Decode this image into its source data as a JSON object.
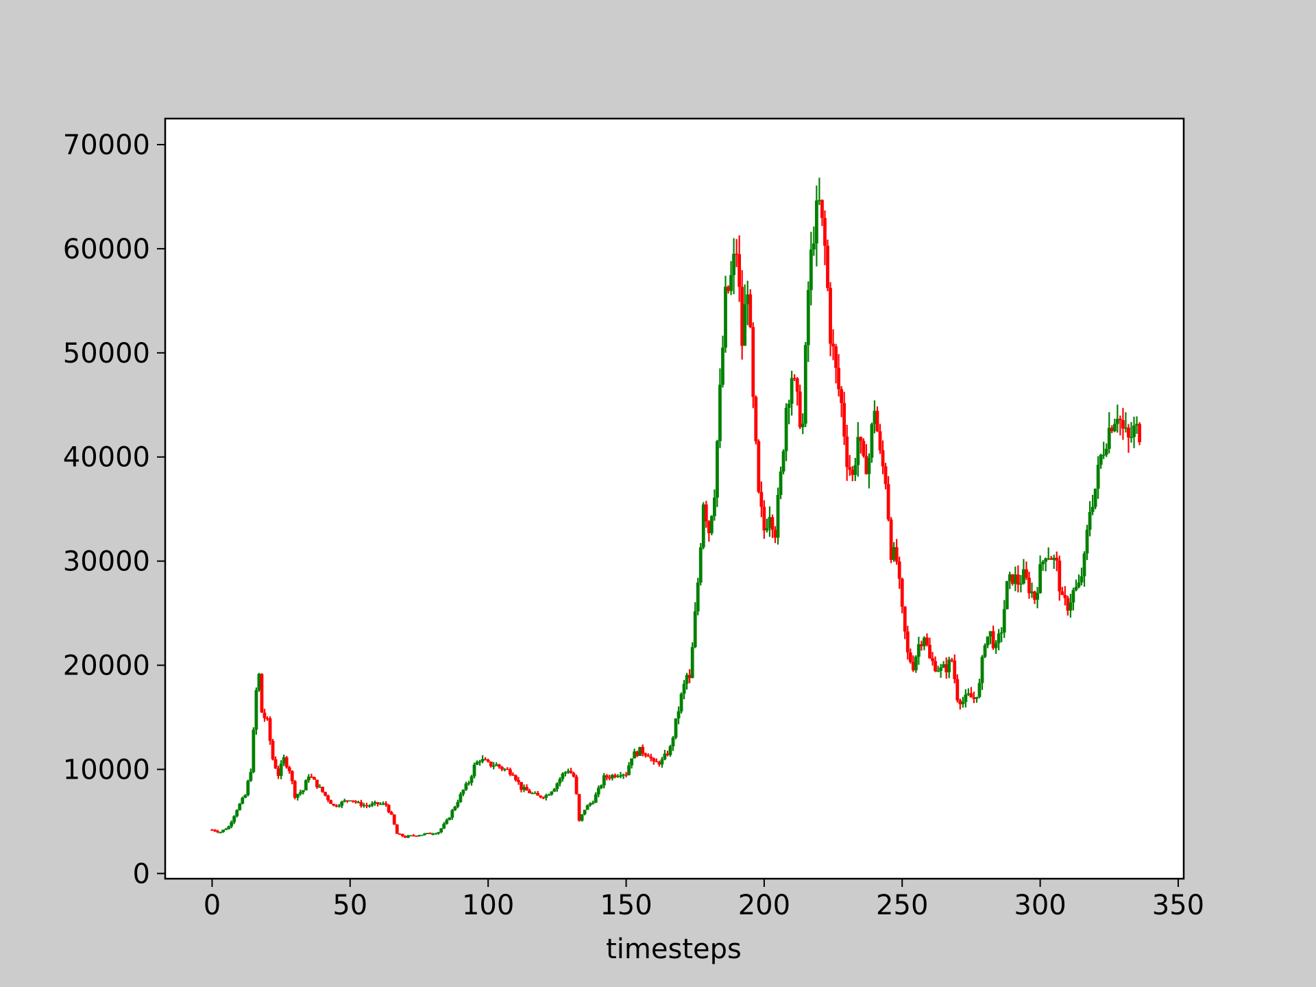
{
  "chart_data": {
    "type": "candlestick",
    "xlabel": "timesteps",
    "ylabel": "",
    "xlim": [
      -17,
      352
    ],
    "ylim": [
      -500,
      72500
    ],
    "xticks": [
      0,
      50,
      100,
      150,
      200,
      250,
      300,
      350
    ],
    "yticks": [
      0,
      10000,
      20000,
      30000,
      40000,
      50000,
      60000,
      70000
    ],
    "colors": {
      "up": "#008000",
      "down": "#ff0000",
      "background": "#cccccc",
      "plot_background": "#ffffff"
    },
    "grid": false,
    "anchor_points": [
      [
        0,
        4200
      ],
      [
        3,
        4000
      ],
      [
        6,
        4500
      ],
      [
        9,
        6200
      ],
      [
        12,
        7500
      ],
      [
        14,
        10000
      ],
      [
        15,
        13500
      ],
      [
        16,
        17500
      ],
      [
        17,
        19000
      ],
      [
        18,
        15500
      ],
      [
        20,
        14500
      ],
      [
        22,
        11000
      ],
      [
        24,
        9500
      ],
      [
        26,
        11000
      ],
      [
        28,
        10000
      ],
      [
        30,
        7500
      ],
      [
        33,
        8000
      ],
      [
        35,
        9500
      ],
      [
        38,
        8500
      ],
      [
        41,
        7500
      ],
      [
        44,
        6500
      ],
      [
        47,
        6800
      ],
      [
        50,
        7200
      ],
      [
        53,
        6700
      ],
      [
        56,
        6500
      ],
      [
        60,
        6700
      ],
      [
        63,
        6600
      ],
      [
        65,
        5500
      ],
      [
        67,
        3800
      ],
      [
        70,
        3500
      ],
      [
        74,
        3700
      ],
      [
        78,
        3800
      ],
      [
        82,
        4000
      ],
      [
        85,
        5000
      ],
      [
        88,
        6500
      ],
      [
        91,
        8000
      ],
      [
        93,
        8800
      ],
      [
        95,
        10300
      ],
      [
        97,
        11000
      ],
      [
        100,
        10500
      ],
      [
        103,
        10400
      ],
      [
        106,
        10000
      ],
      [
        109,
        9700
      ],
      [
        112,
        8200
      ],
      [
        115,
        7800
      ],
      [
        118,
        7400
      ],
      [
        121,
        7500
      ],
      [
        124,
        8300
      ],
      [
        127,
        9500
      ],
      [
        129,
        10000
      ],
      [
        131,
        9300
      ],
      [
        132,
        7500
      ],
      [
        133,
        5000
      ],
      [
        135,
        6200
      ],
      [
        138,
        7000
      ],
      [
        140,
        8000
      ],
      [
        142,
        9200
      ],
      [
        145,
        9400
      ],
      [
        148,
        9700
      ],
      [
        150,
        9600
      ],
      [
        152,
        11300
      ],
      [
        155,
        11800
      ],
      [
        158,
        11500
      ],
      [
        160,
        10500
      ],
      [
        163,
        10800
      ],
      [
        166,
        12000
      ],
      [
        168,
        14500
      ],
      [
        170,
        17000
      ],
      [
        172,
        19000
      ],
      [
        173,
        18500
      ],
      [
        174,
        21500
      ],
      [
        176,
        28000
      ],
      [
        178,
        36000
      ],
      [
        180,
        33000
      ],
      [
        182,
        37000
      ],
      [
        184,
        46000
      ],
      [
        186,
        55000
      ],
      [
        188,
        57000
      ],
      [
        190,
        60000
      ],
      [
        192,
        51000
      ],
      [
        194,
        57000
      ],
      [
        196,
        45000
      ],
      [
        198,
        36000
      ],
      [
        200,
        33000
      ],
      [
        202,
        35000
      ],
      [
        204,
        33000
      ],
      [
        206,
        38000
      ],
      [
        208,
        45000
      ],
      [
        210,
        48000
      ],
      [
        212,
        45000
      ],
      [
        214,
        43000
      ],
      [
        216,
        56000
      ],
      [
        218,
        62000
      ],
      [
        220,
        64000
      ],
      [
        222,
        60000
      ],
      [
        224,
        52000
      ],
      [
        226,
        48000
      ],
      [
        228,
        45000
      ],
      [
        230,
        40000
      ],
      [
        232,
        38000
      ],
      [
        234,
        42000
      ],
      [
        236,
        39000
      ],
      [
        238,
        40000
      ],
      [
        240,
        45000
      ],
      [
        242,
        40000
      ],
      [
        244,
        38000
      ],
      [
        246,
        31000
      ],
      [
        248,
        30000
      ],
      [
        250,
        25000
      ],
      [
        252,
        21000
      ],
      [
        254,
        20000
      ],
      [
        256,
        22000
      ],
      [
        258,
        23000
      ],
      [
        260,
        20500
      ],
      [
        262,
        20000
      ],
      [
        264,
        19500
      ],
      [
        266,
        19800
      ],
      [
        268,
        20500
      ],
      [
        270,
        17000
      ],
      [
        272,
        16500
      ],
      [
        274,
        17000
      ],
      [
        276,
        16800
      ],
      [
        278,
        18000
      ],
      [
        280,
        22500
      ],
      [
        282,
        23000
      ],
      [
        284,
        21500
      ],
      [
        286,
        23500
      ],
      [
        288,
        27500
      ],
      [
        290,
        28500
      ],
      [
        292,
        28000
      ],
      [
        294,
        28500
      ],
      [
        296,
        27500
      ],
      [
        298,
        26500
      ],
      [
        300,
        29000
      ],
      [
        302,
        31000
      ],
      [
        304,
        30500
      ],
      [
        306,
        29500
      ],
      [
        308,
        26000
      ],
      [
        310,
        25800
      ],
      [
        312,
        27000
      ],
      [
        314,
        27500
      ],
      [
        316,
        30000
      ],
      [
        318,
        35000
      ],
      [
        320,
        37000
      ],
      [
        322,
        40000
      ],
      [
        324,
        42000
      ],
      [
        326,
        43500
      ],
      [
        328,
        44500
      ],
      [
        330,
        42500
      ],
      [
        332,
        41500
      ],
      [
        334,
        42500
      ],
      [
        336,
        42500
      ]
    ],
    "last_index": 336
  }
}
